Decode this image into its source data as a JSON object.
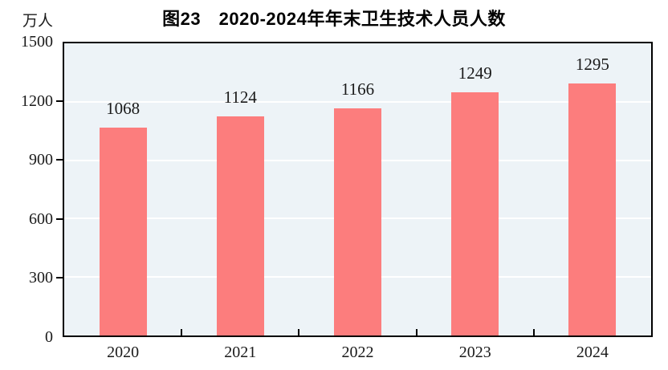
{
  "figure": {
    "title": "图23　2020-2024年年末卫生技术人员人数",
    "unit_label": "万人"
  },
  "chart_data": {
    "type": "bar",
    "title": "图23　2020-2024年年末卫生技术人员人数",
    "categories": [
      "2020",
      "2021",
      "2022",
      "2023",
      "2024"
    ],
    "values": [
      1068,
      1124,
      1166,
      1249,
      1295
    ],
    "data_labels": [
      "1068",
      "1124",
      "1166",
      "1249",
      "1295"
    ],
    "xlabel": "",
    "ylabel": "万人",
    "ylim": [
      0,
      1500
    ],
    "yticks": [
      0,
      300,
      600,
      900,
      1200,
      1500
    ],
    "grid": true,
    "legend": "none",
    "colors": {
      "bar": "#FC7D7D",
      "plot_background": "#EDF3F7",
      "gridline": "#FFFFFF",
      "axis": "#000000",
      "text": "#1A1A1A"
    }
  }
}
